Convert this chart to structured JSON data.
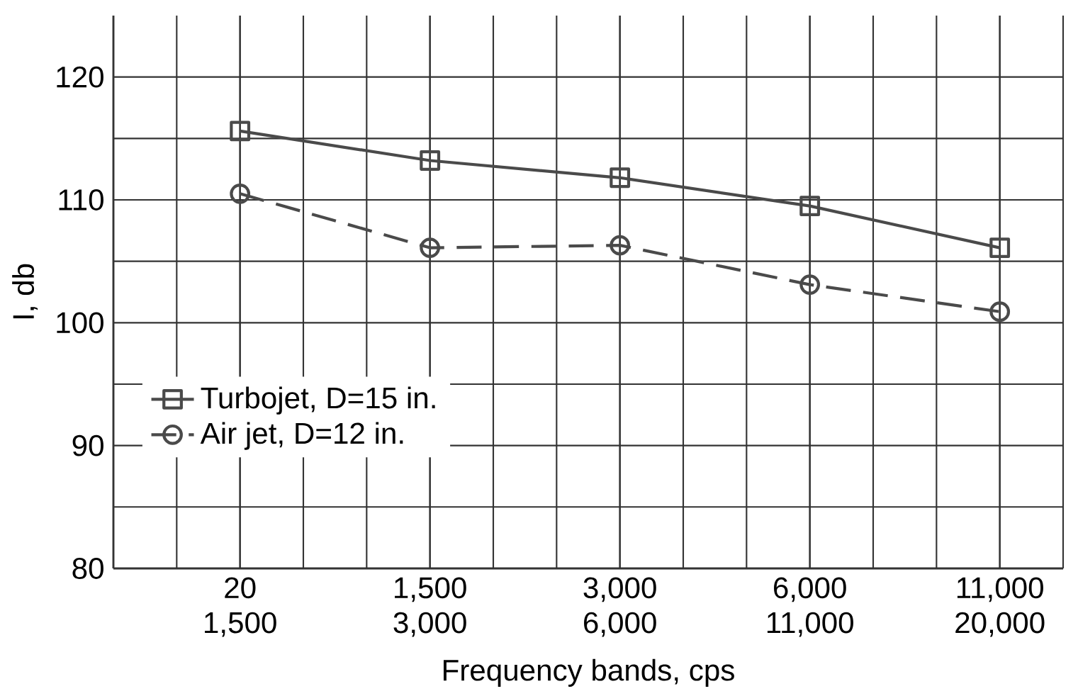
{
  "chart_data": {
    "type": "line",
    "xlabel": "Frequency bands, cps",
    "ylabel": "I, db",
    "categories": [
      "20 1,500",
      "1,500 3,000",
      "3,000 6,000",
      "6,000 11,000",
      "11,000 20,000"
    ],
    "series": [
      {
        "name": "Turbojet, D=15 in.",
        "color": "#4a4a4a",
        "marker": "square",
        "line_style": "solid",
        "values": [
          115.6,
          113.2,
          111.8,
          109.5,
          106.1
        ]
      },
      {
        "name": "Air jet, D=12 in.",
        "color": "#4a4a4a",
        "marker": "circle",
        "line_style": "dashed",
        "values": [
          110.5,
          106.1,
          106.3,
          103.1,
          100.9
        ]
      }
    ],
    "ylim": [
      80,
      125
    ],
    "yticks": [
      80,
      {
        "value": 85,
        "label": null
      },
      90,
      {
        "value": 95,
        "label": null
      },
      100,
      {
        "value": 105,
        "label": null
      },
      110,
      {
        "value": 115,
        "label": null
      },
      120
    ],
    "grid": true,
    "legend": "bottom left"
  }
}
